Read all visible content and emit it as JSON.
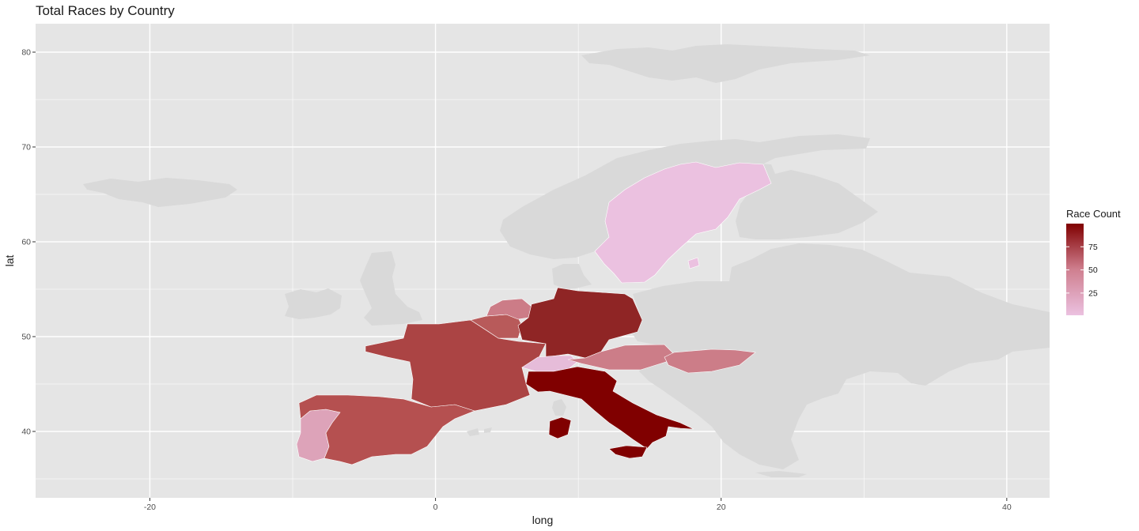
{
  "title": "Total Races by Country",
  "chart_data": {
    "type": "heatmap",
    "subtype": "choropleth",
    "title": "Total Races by Country",
    "xlabel": "long",
    "ylabel": "lat",
    "xlim": [
      -28,
      43
    ],
    "ylim": [
      33,
      83
    ],
    "x_ticks": [
      -20,
      0,
      20,
      40
    ],
    "x_tick_labels": [
      "-20",
      "0",
      "20",
      "40"
    ],
    "y_ticks": [
      40,
      50,
      60,
      70,
      80
    ],
    "y_tick_labels": [
      "40",
      "50",
      "60",
      "70",
      "80"
    ],
    "grid": true,
    "panel_background": "#e5e5e5",
    "no_data_color": "#d9d9d9",
    "legend": {
      "title": "Race Count",
      "placement": "right",
      "low_color": "#ebc1e0",
      "mid_color": "#cf7f8f",
      "high_color": "#800000",
      "range": [
        1,
        100
      ],
      "ticks": [
        25,
        50,
        75
      ],
      "tick_labels": [
        "25",
        "50",
        "75"
      ]
    },
    "countries": [
      {
        "name": "Italy",
        "value": 100,
        "color": "#800000"
      },
      {
        "name": "Germany",
        "value": 79,
        "color": "#8f2525"
      },
      {
        "name": "France",
        "value": 70,
        "color": "#ab4444"
      },
      {
        "name": "Spain",
        "value": 62,
        "color": "#b55050"
      },
      {
        "name": "Belgium",
        "value": 55,
        "color": "#b85a5a"
      },
      {
        "name": "Netherlands",
        "value": 34,
        "color": "#cc7c87"
      },
      {
        "name": "Austria",
        "value": 33,
        "color": "#cc7d88"
      },
      {
        "name": "Hungary",
        "value": 33,
        "color": "#cc7d88"
      },
      {
        "name": "Portugal",
        "value": 17,
        "color": "#dda3b9"
      },
      {
        "name": "Switzerland",
        "value": 3,
        "color": "#e6bcd9"
      },
      {
        "name": "Sweden",
        "value": 1,
        "color": "#ebc1e0"
      }
    ]
  }
}
